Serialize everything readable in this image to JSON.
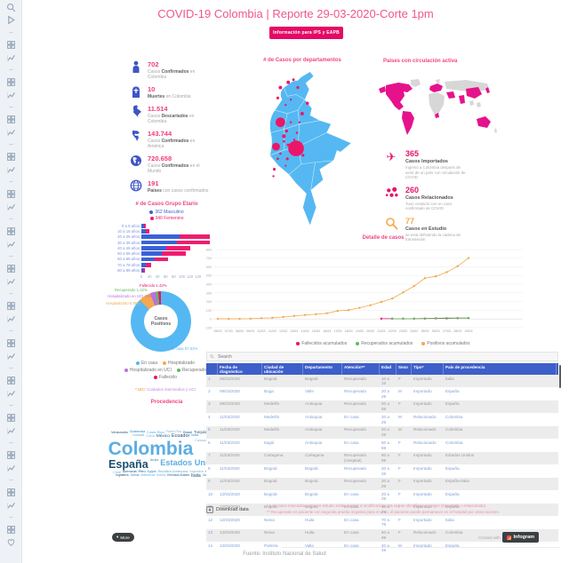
{
  "accent": {
    "pink_title": "#ef4881",
    "magenta": "#e50a64",
    "kpi_pink": "#f23d7c",
    "kpi_blue": "#3d55c6",
    "map_blue": "#55b8f2",
    "bubble_pink": "#ec1668",
    "world_pink": "#e6128c",
    "world_gray": "#d7d7d7",
    "orange": "#f5a84d",
    "green": "#5dbb63",
    "purple": "#b873dc",
    "table_header_blue": "#3e5fc9"
  },
  "sidebar": {
    "top": [
      "search",
      "play"
    ],
    "repeat": [
      "dash",
      "grid",
      "chart"
    ],
    "repeat_count": 13,
    "bottom": [
      "dash",
      "grid",
      "heart"
    ]
  },
  "header": {
    "title": "COVID-19 Colombia | Reporte 29-03-2020-Corte 1pm",
    "button_label": "Información para IPS y EAPB"
  },
  "sections": {
    "age_title": "# de Casos Grupo Etario",
    "map_title": "# de Casos por departamentos",
    "world_title": "Países con circulación activa",
    "detail_title": "Detalle de casos",
    "origin_title": "Procedencia"
  },
  "kpis": [
    {
      "icon": "person-icon",
      "key": "person",
      "value": "702",
      "label_pre": "Casos ",
      "label_bold": "Confirmados",
      "label_post": " en Colombia"
    },
    {
      "icon": "tombstone-icon",
      "key": "tomb",
      "value": "10",
      "label_pre": "",
      "label_bold": "Muertes",
      "label_post": " en Colombia"
    },
    {
      "icon": "colombia-map-icon",
      "key": "colmap",
      "value": "11.514",
      "label_pre": "Casos ",
      "label_bold": "Descartados",
      "label_post": " en Colombia"
    },
    {
      "icon": "americas-icon",
      "key": "americas",
      "value": "143.744",
      "label_pre": "Casos ",
      "label_bold": "Confirmados",
      "label_post": " en América"
    },
    {
      "icon": "globe-americas-icon",
      "key": "globe",
      "value": "720.658",
      "label_pre": "Casos ",
      "label_bold": "Confirmados",
      "label_post": " en el Mundo"
    },
    {
      "icon": "world-icon",
      "key": "world",
      "value": "191",
      "label_pre": "",
      "label_bold": "Países",
      "label_post": " con casos confirmados"
    }
  ],
  "transmission": [
    {
      "icon": "airplane-icon",
      "key": "plane",
      "value": "365",
      "label": "Casos Importados",
      "description": "Ingresó a Colombia después de venir de un país con circulación de COVID",
      "value_color": "#e6156b"
    },
    {
      "icon": "people-icon",
      "key": "people",
      "value": "260",
      "label": "Casos Relacionados",
      "description": "Tuvo contacto con un caso confirmado de COVID",
      "value_color": "#e6156b"
    },
    {
      "icon": "magnifier-icon",
      "key": "magnifier",
      "value": "77",
      "label": "Casos en Estudio",
      "description": "se está definiendo la cadena de transmisión",
      "value_color": "#f5a84d"
    }
  ],
  "uci_note": {
    "prefix": "* UCI:",
    "text": " Cuidados intermedios y UCI"
  },
  "word_cloud": [
    [
      "Venezuela",
      1.9
    ],
    [
      "Guatemala",
      1.7
    ],
    [
      "Costa Rica",
      1.9
    ],
    [
      "Puerto Rico",
      1.6
    ],
    [
      "Brasil",
      1.9
    ],
    [
      "Turquía",
      2.0
    ],
    [
      "Francia",
      1.8
    ],
    [
      "Canadá",
      1.8
    ],
    [
      "Cuba",
      1.9
    ],
    [
      "México",
      2.3
    ],
    [
      "Ecuador",
      2.6
    ],
    [
      "India",
      1.7
    ],
    [
      "Colombia",
      10
    ],
    [
      "Curazao",
      1.6
    ],
    [
      "Panamá",
      2.1
    ],
    [
      "España",
      6
    ],
    [
      "Aruba",
      1.7
    ],
    [
      "Estados Unidos",
      4.4
    ],
    [
      "Chile",
      1.9
    ],
    [
      "Alemania",
      1.8
    ],
    [
      "Perú",
      1.8
    ],
    [
      "Egipto",
      1.7
    ],
    [
      "República Dominicana",
      1.6
    ],
    [
      "Argentina",
      1.7
    ],
    [
      "Honduras",
      1.6
    ],
    [
      "Inglaterra",
      1.6
    ],
    [
      "Grecia",
      1.6
    ],
    [
      "Marruecos",
      1.6
    ],
    [
      "Bolivia",
      1.6
    ],
    [
      "Emiratos Árabes",
      1.6
    ],
    [
      "Italia",
      2.4
    ],
    [
      "Jamaica",
      1.8
    ]
  ],
  "chart_data": [
    {
      "type": "bar",
      "subtype": "age-pyramid",
      "title": "# de Casos Grupo Etario",
      "categories": [
        "0 a 9 años",
        "10 a 19 años",
        "20 a 29 años",
        "30 a 39 años",
        "40 a 49 años",
        "50 a 59 años",
        "60 a 69 años",
        "70 a 79 años",
        "80 a 89 años"
      ],
      "series": [
        {
          "name": "Masculino",
          "total": 362,
          "color": "#3a62d8",
          "values": [
            6,
            12,
            95,
            88,
            62,
            50,
            32,
            12,
            5
          ]
        },
        {
          "name": "Femenino",
          "total": 340,
          "color": "#ee1d6f",
          "values": [
            6,
            8,
            75,
            82,
            58,
            60,
            35,
            12,
            4
          ]
        }
      ],
      "xticks": [
        0,
        20,
        40,
        60,
        80,
        100,
        120,
        140
      ],
      "legend_position": "top"
    },
    {
      "type": "pie",
      "title": "Casos Positivos",
      "center_label": "Casos Positivos",
      "slices": [
        {
          "label": "En casa",
          "pct": 87.61,
          "color": "#55b8f2"
        },
        {
          "label": "Hospitalizado",
          "pct": 6.55,
          "color": "#f5a84d"
        },
        {
          "label": "Hospitalizado en UCI",
          "pct": 2.99,
          "color": "#b873dc"
        },
        {
          "label": "Recuperado",
          "pct": 1.42,
          "color": "#5dbb63"
        },
        {
          "label": "Fallecido",
          "pct": 1.42,
          "color": "#e6156b"
        }
      ]
    },
    {
      "type": "line",
      "title": "Detalle de casos",
      "ylim": [
        -100,
        800
      ],
      "yticks": [
        -100,
        0,
        100,
        200,
        300,
        400,
        500,
        600,
        700,
        800
      ],
      "grid": true,
      "legend_position": "bottom",
      "x": [
        "06/03",
        "07/03",
        "08/03",
        "09/03",
        "10/03",
        "11/03",
        "12/03",
        "13/03",
        "14/03",
        "15/03",
        "16/03",
        "17/03",
        "18/03",
        "19/03",
        "20/03",
        "21/03",
        "22/03",
        "23/03",
        "24/03",
        "25/03",
        "26/03",
        "27/03",
        "28/03",
        "29/03"
      ],
      "series": [
        {
          "name": "Positivos acumulados",
          "color": "#f5a84d",
          "values": [
            1,
            1,
            1,
            3,
            9,
            13,
            22,
            34,
            45,
            54,
            65,
            93,
            102,
            128,
            158,
            196,
            235,
            306,
            378,
            470,
            491,
            539,
            608,
            702
          ]
        },
        {
          "name": "Fallecidos acumulados",
          "color": "#e6156b",
          "values": [
            null,
            null,
            null,
            null,
            null,
            null,
            null,
            null,
            null,
            null,
            null,
            null,
            null,
            null,
            null,
            3,
            3,
            3,
            3,
            4,
            6,
            6,
            9,
            10
          ]
        },
        {
          "name": "Recuperados acumulados",
          "color": "#5dbb63",
          "values": [
            null,
            null,
            null,
            null,
            null,
            null,
            null,
            null,
            null,
            null,
            null,
            null,
            null,
            null,
            null,
            null,
            3,
            3,
            3,
            6,
            8,
            10,
            10,
            10
          ]
        }
      ],
      "legend_order": [
        1,
        2,
        0
      ]
    },
    {
      "type": "map-bubbles",
      "title": "# de Casos por departamentos",
      "bubble_color": "#ec1668",
      "bubbles": [
        [
          70,
          90,
          9
        ],
        [
          52,
          60,
          5.5
        ],
        [
          47,
          88,
          4.5
        ],
        [
          52,
          20,
          2
        ],
        [
          61,
          14,
          2
        ],
        [
          67,
          11,
          1.5
        ],
        [
          83,
          38,
          1.8
        ],
        [
          77,
          50,
          2
        ],
        [
          56,
          76,
          2.2
        ],
        [
          61,
          86,
          1.6
        ],
        [
          78,
          98,
          1.6
        ],
        [
          60,
          102,
          1.6
        ],
        [
          45,
          114,
          1.6
        ],
        [
          49,
          102,
          1.4
        ],
        [
          49,
          32,
          1.6
        ],
        [
          72,
          20,
          1.6
        ],
        [
          56,
          82,
          1.4
        ],
        [
          59,
          70,
          1.8
        ],
        [
          71,
          72,
          1.3
        ],
        [
          64,
          60,
          1.2
        ],
        [
          52,
          96,
          1.3
        ],
        [
          66,
          96,
          1.2
        ],
        [
          44,
          122,
          1.2
        ],
        [
          74,
          60,
          1.2
        ],
        [
          58,
          110,
          1.1
        ],
        [
          68,
          80,
          1.2
        ],
        [
          64,
          34,
          1.2
        ],
        [
          58,
          40,
          1.2
        ]
      ]
    }
  ],
  "table": {
    "search_placeholder": "Search",
    "headers": [
      "Fecha de diagnóstico",
      "Ciudad de ubicación",
      "Departamento",
      "Atención**",
      "Edad",
      "Sexo",
      "Tipo*",
      "País de procedencia"
    ],
    "rows": [
      [
        "06/03/2020",
        "Bogotá",
        "Bogotá",
        "Recuperado",
        "10 a 19",
        "F",
        "Importado",
        "Italia"
      ],
      [
        "09/03/2020",
        "Buga",
        "Valle",
        "Recuperado",
        "20 a 29",
        "M",
        "Importado",
        "España"
      ],
      [
        "09/03/2020",
        "Medellín",
        "Antioquia",
        "Recuperado",
        "50 a 59",
        "F",
        "Importado",
        "España"
      ],
      [
        "11/03/2020",
        "Medellín",
        "Antioquia",
        "En casa",
        "20 a 29",
        "M",
        "Relacionado",
        "Colombia"
      ],
      [
        "11/03/2020",
        "Medellín",
        "Antioquia",
        "Recuperado",
        "20 a 29",
        "M",
        "Relacionado",
        "Colombia"
      ],
      [
        "11/03/2020",
        "Itagüí",
        "Antioquia",
        "En casa",
        "50 a 59",
        "F",
        "Relacionado",
        "Colombia"
      ],
      [
        "11/03/2020",
        "Cartagena",
        "Cartagena",
        "Recuperado (Hospital)",
        "80 a 89",
        "F",
        "Importado",
        "Estados Unidos"
      ],
      [
        "11/03/2020",
        "Bogotá",
        "Bogotá",
        "Recuperado",
        "20 a 29",
        "F",
        "Importado",
        "España"
      ],
      [
        "11/03/2020",
        "Bogotá",
        "Bogotá",
        "Recuperado",
        "20 a 29",
        "F",
        "Importado",
        "España-Italia"
      ],
      [
        "12/03/2020",
        "Bogotá",
        "Bogotá",
        "En casa",
        "20 a 29",
        "F",
        "Importado",
        "España"
      ],
      [
        "12/03/2020",
        "Bogotá",
        "Bogotá",
        "En casa",
        "40 a 49",
        "F",
        "Importado",
        "España"
      ],
      [
        "12/03/2020",
        "Neiva",
        "Huila",
        "En casa",
        "70 a 79",
        "F",
        "Importado",
        "Italia"
      ],
      [
        "12/03/2020",
        "Neiva",
        "Huila",
        "En casa",
        "60 a 69",
        "F",
        "Relacionado",
        "Colombia"
      ],
      [
        "13/03/2020",
        "Palmira",
        "Valle",
        "En casa",
        "40 a 49",
        "M",
        "Importado",
        "España"
      ]
    ],
    "download_label": "Download data"
  },
  "footnotes": [
    "* Los casos marcados como en estudio están sujetos a modificación una vez se identifique el origen (importado o relacionado).",
    "** Recuperado es paciente con segunda prueba negativa para el virus, el paciente puede permanecer en el hospital por otras razones."
  ],
  "footer": {
    "more_label": "More",
    "created_with": "Created with",
    "brand": "Infogram",
    "source": "Fuente: Instituto Nacional de Salud"
  }
}
